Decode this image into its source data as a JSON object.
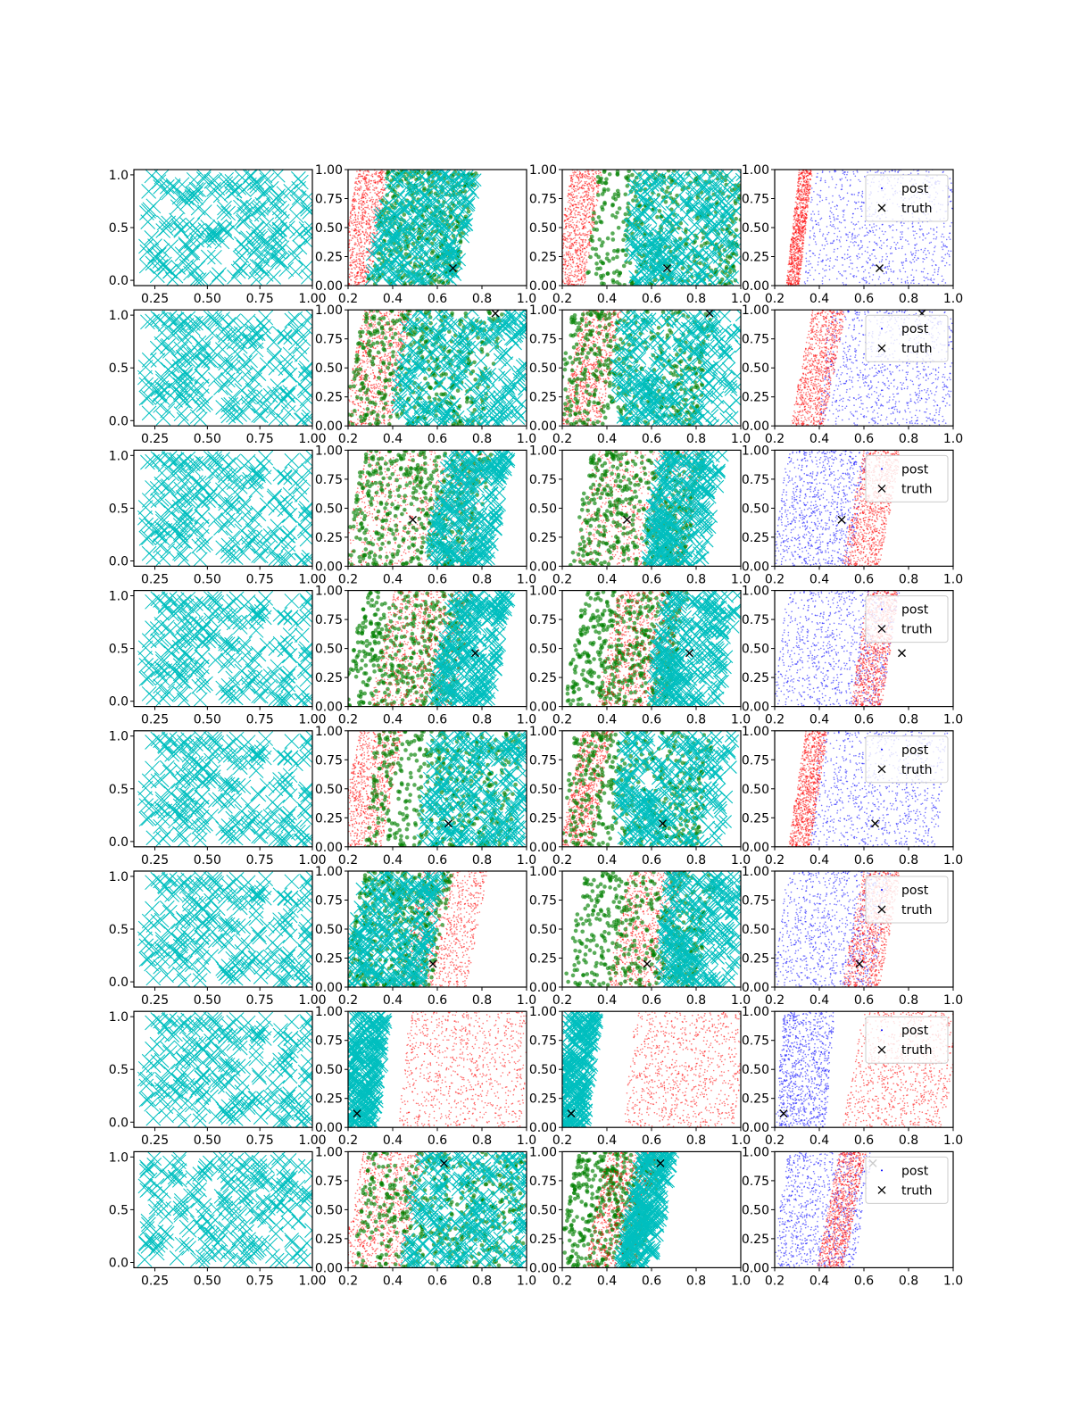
{
  "colors": {
    "prior": "#00bfbf",
    "post": "#ff0000",
    "post_alt": "#0000ff",
    "accepted": "#008000",
    "truth": "#000000",
    "axes": "#000000"
  },
  "legend": {
    "post_label": "post",
    "truth_label": "truth"
  },
  "axis_ticks": {
    "prior_x": [
      "0.25",
      "0.50",
      "0.75",
      "1.00"
    ],
    "prior_y": [
      "0.0",
      "0.5",
      "1.0"
    ],
    "post_x": [
      "0.2",
      "0.4",
      "0.6",
      "0.8",
      "1.0"
    ],
    "post_y": [
      "0.00",
      "0.25",
      "0.50",
      "0.75",
      "1.00"
    ]
  },
  "chart_data": [
    {
      "row": 1,
      "type": "scatter",
      "xlim": [
        0.15,
        1.0
      ],
      "ylim": [
        -0.05,
        1.05
      ],
      "series": [
        {
          "role": "prior",
          "marker": "x"
        }
      ]
    },
    {
      "row": 1,
      "type": "scatter",
      "xlim": [
        0.2,
        1.0
      ],
      "ylim": [
        0,
        1
      ],
      "truth": [
        0.67,
        0.15
      ],
      "bands": [
        {
          "role": "post",
          "x0": 0.2,
          "x1": 0.34,
          "lean": 0.08
        },
        {
          "role": "accepted",
          "x0": 0.33,
          "x1": 0.73,
          "lean": 0.1
        },
        {
          "role": "prior",
          "x0": 0.33,
          "x1": 0.73,
          "lean": 0.1
        }
      ]
    },
    {
      "row": 1,
      "type": "scatter",
      "xlim": [
        0.2,
        1.0
      ],
      "ylim": [
        0,
        1
      ],
      "truth": [
        0.67,
        0.15
      ],
      "bands": [
        {
          "role": "post",
          "x0": 0.2,
          "x1": 0.34,
          "lean": 0.08
        },
        {
          "role": "accepted",
          "x0": 0.33,
          "x1": 1.0,
          "lean": 0.05
        },
        {
          "role": "prior",
          "x0": 0.5,
          "x1": 1.0,
          "lean": 0.05
        }
      ]
    },
    {
      "row": 1,
      "type": "scatter",
      "xlim": [
        0.2,
        1.0
      ],
      "ylim": [
        0,
        1
      ],
      "truth": [
        0.67,
        0.15
      ],
      "legend": true,
      "bands": [
        {
          "role": "post_alt",
          "x0": 0.35,
          "x1": 1.0,
          "lean": 0.05
        },
        {
          "role": "post",
          "x0": 0.28,
          "x1": 0.34,
          "lean": 0.06
        }
      ]
    },
    {
      "row": 2,
      "type": "scatter",
      "xlim": [
        0.15,
        1.0
      ],
      "ylim": [
        -0.05,
        1.05
      ],
      "series": [
        {
          "role": "prior",
          "marker": "x"
        }
      ]
    },
    {
      "row": 2,
      "type": "scatter",
      "xlim": [
        0.2,
        1.0
      ],
      "ylim": [
        0,
        1
      ],
      "truth": [
        0.86,
        0.97
      ],
      "bands": [
        {
          "role": "post",
          "x0": 0.22,
          "x1": 0.44,
          "lean": 0.1
        },
        {
          "role": "accepted",
          "x0": 0.22,
          "x1": 0.85,
          "lean": 0.1
        },
        {
          "role": "prior",
          "x0": 0.43,
          "x1": 1.0,
          "lean": 0.05
        }
      ]
    },
    {
      "row": 2,
      "type": "scatter",
      "xlim": [
        0.2,
        1.0
      ],
      "ylim": [
        0,
        1
      ],
      "truth": [
        0.86,
        0.97
      ],
      "bands": [
        {
          "role": "post",
          "x0": 0.24,
          "x1": 0.42,
          "lean": 0.1
        },
        {
          "role": "accepted",
          "x0": 0.2,
          "x1": 0.85,
          "lean": 0.08
        },
        {
          "role": "prior",
          "x0": 0.44,
          "x1": 1.0,
          "lean": 0.05
        }
      ]
    },
    {
      "row": 2,
      "type": "scatter",
      "xlim": [
        0.2,
        1.0
      ],
      "ylim": [
        0,
        1
      ],
      "truth": [
        0.86,
        0.97
      ],
      "legend": true,
      "bands": [
        {
          "role": "post_alt",
          "x0": 0.42,
          "x1": 1.0,
          "lean": 0.05
        },
        {
          "role": "post",
          "x0": 0.32,
          "x1": 0.47,
          "lean": 0.1
        }
      ]
    },
    {
      "row": 3,
      "type": "scatter",
      "xlim": [
        0.15,
        1.0
      ],
      "ylim": [
        -0.05,
        1.05
      ],
      "series": [
        {
          "role": "prior",
          "marker": "x"
        }
      ]
    },
    {
      "row": 3,
      "type": "scatter",
      "xlim": [
        0.2,
        1.0
      ],
      "ylim": [
        0,
        1
      ],
      "truth": [
        0.49,
        0.4
      ],
      "bands": [
        {
          "role": "post",
          "x0": 0.22,
          "x1": 0.78,
          "lean": 0.1
        },
        {
          "role": "accepted",
          "x0": 0.22,
          "x1": 0.8,
          "lean": 0.1
        },
        {
          "role": "prior",
          "x0": 0.6,
          "x1": 0.88,
          "lean": 0.1
        }
      ]
    },
    {
      "row": 3,
      "type": "scatter",
      "xlim": [
        0.2,
        1.0
      ],
      "ylim": [
        0,
        1
      ],
      "truth": [
        0.49,
        0.4
      ],
      "bands": [
        {
          "role": "post",
          "x0": 0.3,
          "x1": 0.8,
          "lean": 0.1
        },
        {
          "role": "accepted",
          "x0": 0.28,
          "x1": 0.8,
          "lean": 0.1
        },
        {
          "role": "prior",
          "x0": 0.6,
          "x1": 0.88,
          "lean": 0.1
        }
      ]
    },
    {
      "row": 3,
      "type": "scatter",
      "xlim": [
        0.2,
        1.0
      ],
      "ylim": [
        0,
        1
      ],
      "truth": [
        0.5,
        0.4
      ],
      "legend": true,
      "bands": [
        {
          "role": "post_alt",
          "x0": 0.22,
          "x1": 0.58,
          "lean": 0.08
        },
        {
          "role": "post",
          "x0": 0.55,
          "x1": 0.72,
          "lean": 0.1
        }
      ]
    },
    {
      "row": 4,
      "type": "scatter",
      "xlim": [
        0.15,
        1.0
      ],
      "ylim": [
        -0.05,
        1.05
      ],
      "series": [
        {
          "role": "prior",
          "marker": "x"
        }
      ]
    },
    {
      "row": 4,
      "type": "scatter",
      "xlim": [
        0.2,
        1.0
      ],
      "ylim": [
        0,
        1
      ],
      "truth": [
        0.77,
        0.46
      ],
      "bands": [
        {
          "role": "accepted",
          "x0": 0.22,
          "x1": 0.72,
          "lean": 0.1
        },
        {
          "role": "post",
          "x0": 0.35,
          "x1": 0.72,
          "lean": 0.1
        },
        {
          "role": "prior",
          "x0": 0.62,
          "x1": 0.88,
          "lean": 0.1
        }
      ]
    },
    {
      "row": 4,
      "type": "scatter",
      "xlim": [
        0.2,
        1.0
      ],
      "ylim": [
        0,
        1
      ],
      "truth": [
        0.77,
        0.46
      ],
      "bands": [
        {
          "role": "accepted",
          "x0": 0.25,
          "x1": 0.72,
          "lean": 0.1
        },
        {
          "role": "post",
          "x0": 0.4,
          "x1": 0.7,
          "lean": 0.1
        },
        {
          "role": "prior",
          "x0": 0.62,
          "x1": 0.95,
          "lean": 0.1
        }
      ]
    },
    {
      "row": 4,
      "type": "scatter",
      "xlim": [
        0.2,
        1.0
      ],
      "ylim": [
        0,
        1
      ],
      "truth": [
        0.77,
        0.46
      ],
      "legend": true,
      "bands": [
        {
          "role": "post_alt",
          "x0": 0.22,
          "x1": 0.72,
          "lean": 0.08
        },
        {
          "role": "post",
          "x0": 0.58,
          "x1": 0.72,
          "lean": 0.08
        }
      ]
    },
    {
      "row": 5,
      "type": "scatter",
      "xlim": [
        0.15,
        1.0
      ],
      "ylim": [
        -0.05,
        1.05
      ],
      "series": [
        {
          "role": "prior",
          "marker": "x"
        }
      ]
    },
    {
      "row": 5,
      "type": "scatter",
      "xlim": [
        0.2,
        1.0
      ],
      "ylim": [
        0,
        1
      ],
      "truth": [
        0.65,
        0.2
      ],
      "bands": [
        {
          "role": "post",
          "x0": 0.2,
          "x1": 0.4,
          "lean": 0.1
        },
        {
          "role": "accepted",
          "x0": 0.3,
          "x1": 0.95,
          "lean": 0.05
        },
        {
          "role": "prior",
          "x0": 0.55,
          "x1": 1.0,
          "lean": 0.05
        }
      ]
    },
    {
      "row": 5,
      "type": "scatter",
      "xlim": [
        0.2,
        1.0
      ],
      "ylim": [
        0,
        1
      ],
      "truth": [
        0.65,
        0.2
      ],
      "bands": [
        {
          "role": "post",
          "x0": 0.24,
          "x1": 0.38,
          "lean": 0.1
        },
        {
          "role": "accepted",
          "x0": 0.22,
          "x1": 0.85,
          "lean": 0.06
        },
        {
          "role": "prior",
          "x0": 0.45,
          "x1": 0.95,
          "lean": 0.05
        }
      ]
    },
    {
      "row": 5,
      "type": "scatter",
      "xlim": [
        0.2,
        1.0
      ],
      "ylim": [
        0,
        1
      ],
      "truth": [
        0.65,
        0.2
      ],
      "legend": true,
      "bands": [
        {
          "role": "post_alt",
          "x0": 0.38,
          "x1": 0.95,
          "lean": 0.05
        },
        {
          "role": "post",
          "x0": 0.3,
          "x1": 0.4,
          "lean": 0.08
        }
      ]
    },
    {
      "row": 6,
      "type": "scatter",
      "xlim": [
        0.15,
        1.0
      ],
      "ylim": [
        -0.05,
        1.05
      ],
      "series": [
        {
          "role": "prior",
          "marker": "x"
        }
      ]
    },
    {
      "row": 6,
      "type": "scatter",
      "xlim": [
        0.2,
        1.0
      ],
      "ylim": [
        0,
        1
      ],
      "truth": [
        0.58,
        0.2
      ],
      "bands": [
        {
          "role": "post",
          "x0": 0.48,
          "x1": 0.78,
          "lean": 0.1
        },
        {
          "role": "accepted",
          "x0": 0.22,
          "x1": 0.62,
          "lean": 0.1
        },
        {
          "role": "prior",
          "x0": 0.22,
          "x1": 0.58,
          "lean": 0.1
        }
      ]
    },
    {
      "row": 6,
      "type": "scatter",
      "xlim": [
        0.2,
        1.0
      ],
      "ylim": [
        0,
        1
      ],
      "truth": [
        0.58,
        0.2
      ],
      "bands": [
        {
          "role": "post",
          "x0": 0.45,
          "x1": 0.7,
          "lean": 0.1
        },
        {
          "role": "accepted",
          "x0": 0.25,
          "x1": 0.85,
          "lean": 0.1
        },
        {
          "role": "prior",
          "x0": 0.65,
          "x1": 1.0,
          "lean": 0.06
        }
      ]
    },
    {
      "row": 6,
      "type": "scatter",
      "xlim": [
        0.2,
        1.0
      ],
      "ylim": [
        0,
        1
      ],
      "truth": [
        0.58,
        0.2
      ],
      "legend": true,
      "bands": [
        {
          "role": "post_alt",
          "x0": 0.22,
          "x1": 0.68,
          "lean": 0.08
        },
        {
          "role": "post",
          "x0": 0.55,
          "x1": 0.72,
          "lean": 0.1
        }
      ]
    },
    {
      "row": 7,
      "type": "scatter",
      "xlim": [
        0.15,
        1.0
      ],
      "ylim": [
        -0.05,
        1.05
      ],
      "series": [
        {
          "role": "prior",
          "marker": "x"
        }
      ]
    },
    {
      "row": 7,
      "type": "scatter",
      "xlim": [
        0.2,
        1.0
      ],
      "ylim": [
        0,
        1
      ],
      "truth": [
        0.24,
        0.12
      ],
      "bands": [
        {
          "role": "prior",
          "x0": 0.2,
          "x1": 0.35,
          "lean": 0.06
        },
        {
          "role": "post",
          "x0": 0.45,
          "x1": 1.0,
          "lean": 0.05
        }
      ]
    },
    {
      "row": 7,
      "type": "scatter",
      "xlim": [
        0.2,
        1.0
      ],
      "ylim": [
        0,
        1
      ],
      "truth": [
        0.24,
        0.12
      ],
      "bands": [
        {
          "role": "prior",
          "x0": 0.2,
          "x1": 0.33,
          "lean": 0.06
        },
        {
          "role": "post",
          "x0": 0.5,
          "x1": 1.0,
          "lean": 0.05
        }
      ]
    },
    {
      "row": 7,
      "type": "scatter",
      "xlim": [
        0.2,
        1.0
      ],
      "ylim": [
        0,
        1
      ],
      "truth": [
        0.24,
        0.12
      ],
      "legend": true,
      "bands": [
        {
          "role": "post_alt",
          "x0": 0.22,
          "x1": 0.45,
          "lean": 0.04
        },
        {
          "role": "post",
          "x0": 0.55,
          "x1": 1.0,
          "lean": 0.1
        }
      ]
    },
    {
      "row": 8,
      "type": "scatter",
      "xlim": [
        0.15,
        1.0
      ],
      "ylim": [
        -0.05,
        1.05
      ],
      "series": [
        {
          "role": "prior",
          "marker": "x"
        }
      ]
    },
    {
      "row": 8,
      "type": "scatter",
      "xlim": [
        0.2,
        1.0
      ],
      "ylim": [
        0,
        1
      ],
      "truth": [
        0.63,
        0.9
      ],
      "bands": [
        {
          "role": "post",
          "x0": 0.22,
          "x1": 0.5,
          "lean": 0.1
        },
        {
          "role": "accepted",
          "x0": 0.25,
          "x1": 1.0,
          "lean": 0.05
        },
        {
          "role": "prior",
          "x0": 0.48,
          "x1": 1.0,
          "lean": 0.05
        }
      ]
    },
    {
      "row": 8,
      "type": "scatter",
      "xlim": [
        0.2,
        1.0
      ],
      "ylim": [
        0,
        1
      ],
      "truth": [
        0.64,
        0.9
      ],
      "bands": [
        {
          "role": "accepted",
          "x0": 0.22,
          "x1": 0.6,
          "lean": 0.1
        },
        {
          "role": "post",
          "x0": 0.35,
          "x1": 0.58,
          "lean": 0.1
        },
        {
          "role": "prior",
          "x0": 0.5,
          "x1": 0.65,
          "lean": 0.1
        }
      ]
    },
    {
      "row": 8,
      "type": "scatter",
      "xlim": [
        0.2,
        1.0
      ],
      "ylim": [
        0,
        1
      ],
      "truth": [
        0.64,
        0.9
      ],
      "legend": true,
      "bands": [
        {
          "role": "post_alt",
          "x0": 0.22,
          "x1": 0.6,
          "lean": 0.08
        },
        {
          "role": "post",
          "x0": 0.44,
          "x1": 0.56,
          "lean": 0.1
        }
      ]
    }
  ]
}
